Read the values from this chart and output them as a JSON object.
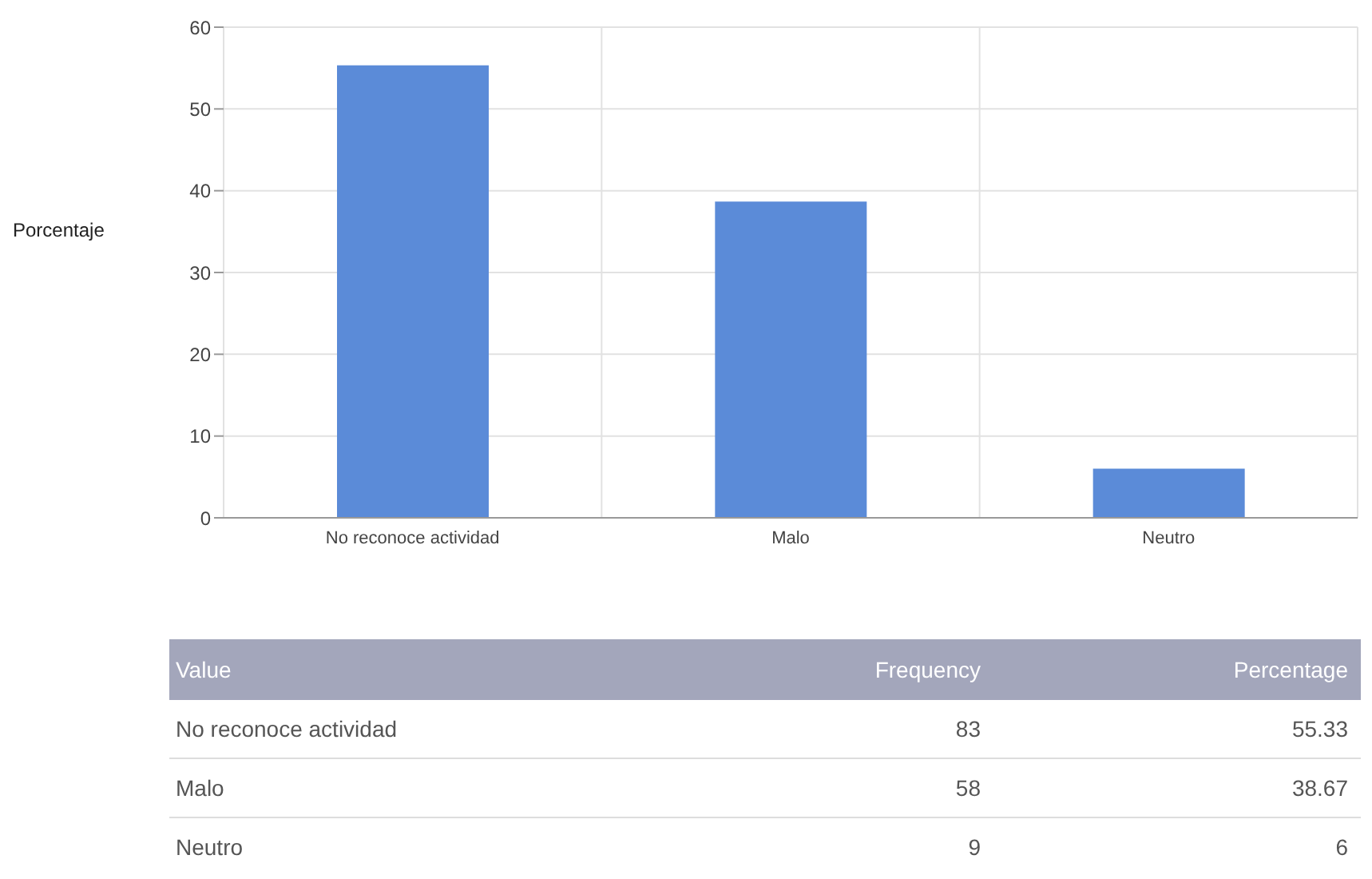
{
  "chart_data": {
    "type": "bar",
    "ylabel": "Porcentaje",
    "categories": [
      "No reconoce actividad",
      "Malo",
      "Neutro"
    ],
    "values": [
      55.33,
      38.67,
      6
    ],
    "color": "#5b8bd8",
    "ylim": [
      0,
      60
    ],
    "yticks": [
      0,
      10,
      20,
      30,
      40,
      50,
      60
    ],
    "grid": true,
    "annotations": [
      "Value",
      "Frequency",
      "Percentage",
      "83",
      "58",
      "9",
      "55.33",
      "38.67",
      "6"
    ]
  }
}
